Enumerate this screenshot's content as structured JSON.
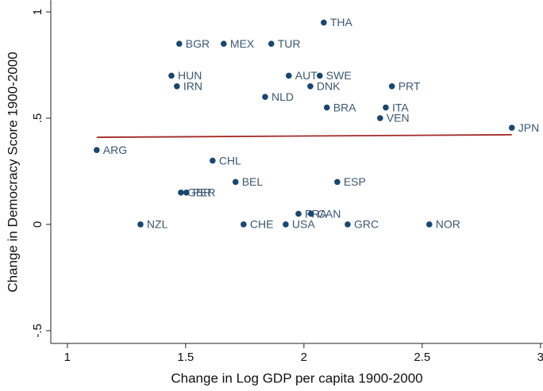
{
  "chart_data": {
    "type": "scatter",
    "x_label": "Change in Log GDP per capita 1900-2000",
    "y_label": "Change in Democracy Score 1900-2000",
    "color": "#1a476f",
    "labels": [
      "THA",
      "BGR",
      "MEX",
      "TUR",
      "HUN",
      "IRN",
      "AUT",
      "SWE",
      "DNK",
      "PRT",
      "NLD",
      "BRA",
      "ITA",
      "VEN",
      "JPN",
      "ARG",
      "CHL",
      "BEL",
      "ESP",
      "GBR",
      "PER",
      "FRA",
      "CAN",
      "NZL",
      "CHE",
      "USA",
      "GRC",
      "NOR"
    ],
    "x": [
      2.084,
      1.473,
      1.661,
      1.862,
      1.44,
      1.463,
      1.936,
      2.067,
      2.027,
      2.372,
      1.836,
      2.097,
      2.346,
      2.322,
      2.879,
      1.124,
      1.614,
      1.711,
      2.141,
      1.48,
      1.503,
      1.977,
      2.03,
      1.309,
      1.745,
      1.923,
      2.185,
      2.53
    ],
    "values": [
      0.95,
      0.85,
      0.85,
      0.85,
      0.7,
      0.65,
      0.7,
      0.7,
      0.65,
      0.65,
      0.6,
      0.55,
      0.55,
      0.5,
      0.455,
      0.35,
      0.3,
      0.2,
      0.2,
      0.15,
      0.15,
      0.05,
      0.05,
      0,
      0,
      0,
      0,
      0
    ],
    "fit": {
      "color": "#a32a2a",
      "x": [
        1.124,
        2.879
      ],
      "values": [
        0.41,
        0.422
      ]
    },
    "xlim": [
      0.93,
      3.01
    ],
    "ylim": [
      -0.56,
      1.055
    ],
    "xticks": [
      1,
      1.5,
      2,
      2.5,
      3
    ],
    "yticks": [
      {
        "value": -0.5,
        "label": "-.5"
      },
      0,
      {
        "value": 0.5,
        "label": ".5"
      },
      1
    ]
  }
}
